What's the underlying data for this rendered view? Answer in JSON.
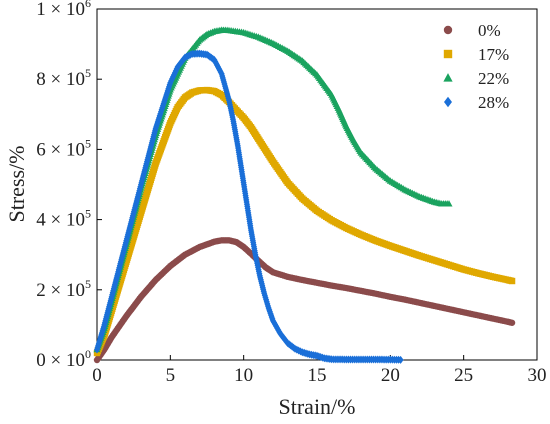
{
  "chart_data": {
    "type": "scatter",
    "xlabel": "Strain/%",
    "ylabel": "Stress/%",
    "xlim": [
      0,
      30
    ],
    "ylim": [
      0,
      1000000
    ],
    "x_ticks": [
      {
        "value": 0,
        "label": "0"
      },
      {
        "value": 5,
        "label": "5"
      },
      {
        "value": 10,
        "label": "10"
      },
      {
        "value": 15,
        "label": "15"
      },
      {
        "value": 20,
        "label": "20"
      },
      {
        "value": 25,
        "label": "25"
      },
      {
        "value": 30,
        "label": "30"
      }
    ],
    "y_ticks": [
      {
        "value": 0,
        "mantissa": "0 × 10",
        "exp": "0"
      },
      {
        "value": 200000,
        "mantissa": "2 × 10",
        "exp": "5"
      },
      {
        "value": 400000,
        "mantissa": "4 × 10",
        "exp": "5"
      },
      {
        "value": 600000,
        "mantissa": "6 × 10",
        "exp": "5"
      },
      {
        "value": 800000,
        "mantissa": "8 × 10",
        "exp": "5"
      },
      {
        "value": 1000000,
        "mantissa": "1 × 10",
        "exp": "6"
      }
    ],
    "grid": false,
    "legend_position": "top-right",
    "series": [
      {
        "name": "0%",
        "marker": "circle",
        "color": "#8b4b4b",
        "points": [
          [
            0,
            0
          ],
          [
            0.5,
            30000
          ],
          [
            1,
            65000
          ],
          [
            2,
            125000
          ],
          [
            3,
            180000
          ],
          [
            4,
            228000
          ],
          [
            5,
            268000
          ],
          [
            6,
            300000
          ],
          [
            7,
            322000
          ],
          [
            8,
            337000
          ],
          [
            8.5,
            341000
          ],
          [
            9,
            341000
          ],
          [
            9.5,
            336000
          ],
          [
            10,
            322000
          ],
          [
            10.5,
            303000
          ],
          [
            11,
            283000
          ],
          [
            11.5,
            264000
          ],
          [
            12,
            250000
          ],
          [
            13,
            237000
          ],
          [
            14,
            228000
          ],
          [
            15,
            220000
          ],
          [
            16,
            212000
          ],
          [
            17,
            205000
          ],
          [
            18,
            197000
          ],
          [
            19,
            189000
          ],
          [
            20,
            180000
          ],
          [
            21,
            172000
          ],
          [
            22,
            163000
          ],
          [
            23,
            154000
          ],
          [
            24,
            145000
          ],
          [
            25,
            136000
          ],
          [
            26,
            127000
          ],
          [
            27,
            118000
          ],
          [
            28,
            109000
          ],
          [
            28.3,
            106000
          ]
        ]
      },
      {
        "name": "17%",
        "marker": "square",
        "color": "#e0a800",
        "points": [
          [
            0,
            20000
          ],
          [
            0.5,
            70000
          ],
          [
            1,
            140000
          ],
          [
            2,
            280000
          ],
          [
            3,
            420000
          ],
          [
            4,
            560000
          ],
          [
            5,
            675000
          ],
          [
            5.5,
            720000
          ],
          [
            6,
            748000
          ],
          [
            6.5,
            762000
          ],
          [
            7,
            768000
          ],
          [
            7.5,
            769000
          ],
          [
            8,
            766000
          ],
          [
            8.5,
            755000
          ],
          [
            9,
            735000
          ],
          [
            9.5,
            712000
          ],
          [
            10,
            690000
          ],
          [
            10.5,
            663000
          ],
          [
            11,
            630000
          ],
          [
            12,
            565000
          ],
          [
            13,
            505000
          ],
          [
            14,
            460000
          ],
          [
            15,
            425000
          ],
          [
            16,
            398000
          ],
          [
            17,
            376000
          ],
          [
            18,
            357000
          ],
          [
            19,
            340000
          ],
          [
            20,
            325000
          ],
          [
            21,
            311000
          ],
          [
            22,
            297000
          ],
          [
            23,
            284000
          ],
          [
            24,
            271000
          ],
          [
            25,
            258000
          ],
          [
            26,
            247000
          ],
          [
            27,
            237000
          ],
          [
            28,
            228000
          ],
          [
            28.3,
            225000
          ]
        ]
      },
      {
        "name": "22%",
        "marker": "triangle",
        "color": "#1aa35f",
        "points": [
          [
            0,
            30000
          ],
          [
            0.5,
            90000
          ],
          [
            1,
            170000
          ],
          [
            2,
            330000
          ],
          [
            3,
            490000
          ],
          [
            4,
            640000
          ],
          [
            5,
            770000
          ],
          [
            6,
            860000
          ],
          [
            7,
            912000
          ],
          [
            7.5,
            928000
          ],
          [
            8,
            936000
          ],
          [
            8.5,
            940000
          ],
          [
            9,
            939000
          ],
          [
            10,
            933000
          ],
          [
            11,
            920000
          ],
          [
            12,
            902000
          ],
          [
            13,
            880000
          ],
          [
            14,
            852000
          ],
          [
            15,
            812000
          ],
          [
            16,
            755000
          ],
          [
            16.5,
            712000
          ],
          [
            17,
            665000
          ],
          [
            17.5,
            625000
          ],
          [
            18,
            590000
          ],
          [
            19,
            545000
          ],
          [
            20,
            510000
          ],
          [
            21,
            485000
          ],
          [
            22,
            465000
          ],
          [
            23,
            450000
          ],
          [
            23.5,
            445000
          ],
          [
            24,
            445000
          ]
        ]
      },
      {
        "name": "28%",
        "marker": "diamond",
        "color": "#1a6fd8",
        "points": [
          [
            0,
            30000
          ],
          [
            0.5,
            100000
          ],
          [
            1,
            180000
          ],
          [
            2,
            340000
          ],
          [
            3,
            500000
          ],
          [
            4,
            660000
          ],
          [
            5,
            790000
          ],
          [
            5.5,
            835000
          ],
          [
            6,
            862000
          ],
          [
            6.5,
            872000
          ],
          [
            7,
            873000
          ],
          [
            7.5,
            870000
          ],
          [
            8,
            855000
          ],
          [
            8.5,
            815000
          ],
          [
            9,
            740000
          ],
          [
            9.3,
            680000
          ],
          [
            9.6,
            610000
          ],
          [
            9.9,
            530000
          ],
          [
            10.2,
            450000
          ],
          [
            10.5,
            370000
          ],
          [
            10.8,
            300000
          ],
          [
            11.1,
            240000
          ],
          [
            11.4,
            190000
          ],
          [
            11.7,
            148000
          ],
          [
            12,
            112000
          ],
          [
            12.5,
            75000
          ],
          [
            13,
            48000
          ],
          [
            13.5,
            32000
          ],
          [
            14,
            22000
          ],
          [
            14.5,
            16000
          ],
          [
            15,
            12000
          ],
          [
            15.5,
            5000
          ],
          [
            16,
            2000
          ],
          [
            17,
            1500
          ],
          [
            18,
            1500
          ],
          [
            19,
            1500
          ],
          [
            20,
            1000
          ],
          [
            20.7,
            500
          ]
        ]
      }
    ]
  }
}
